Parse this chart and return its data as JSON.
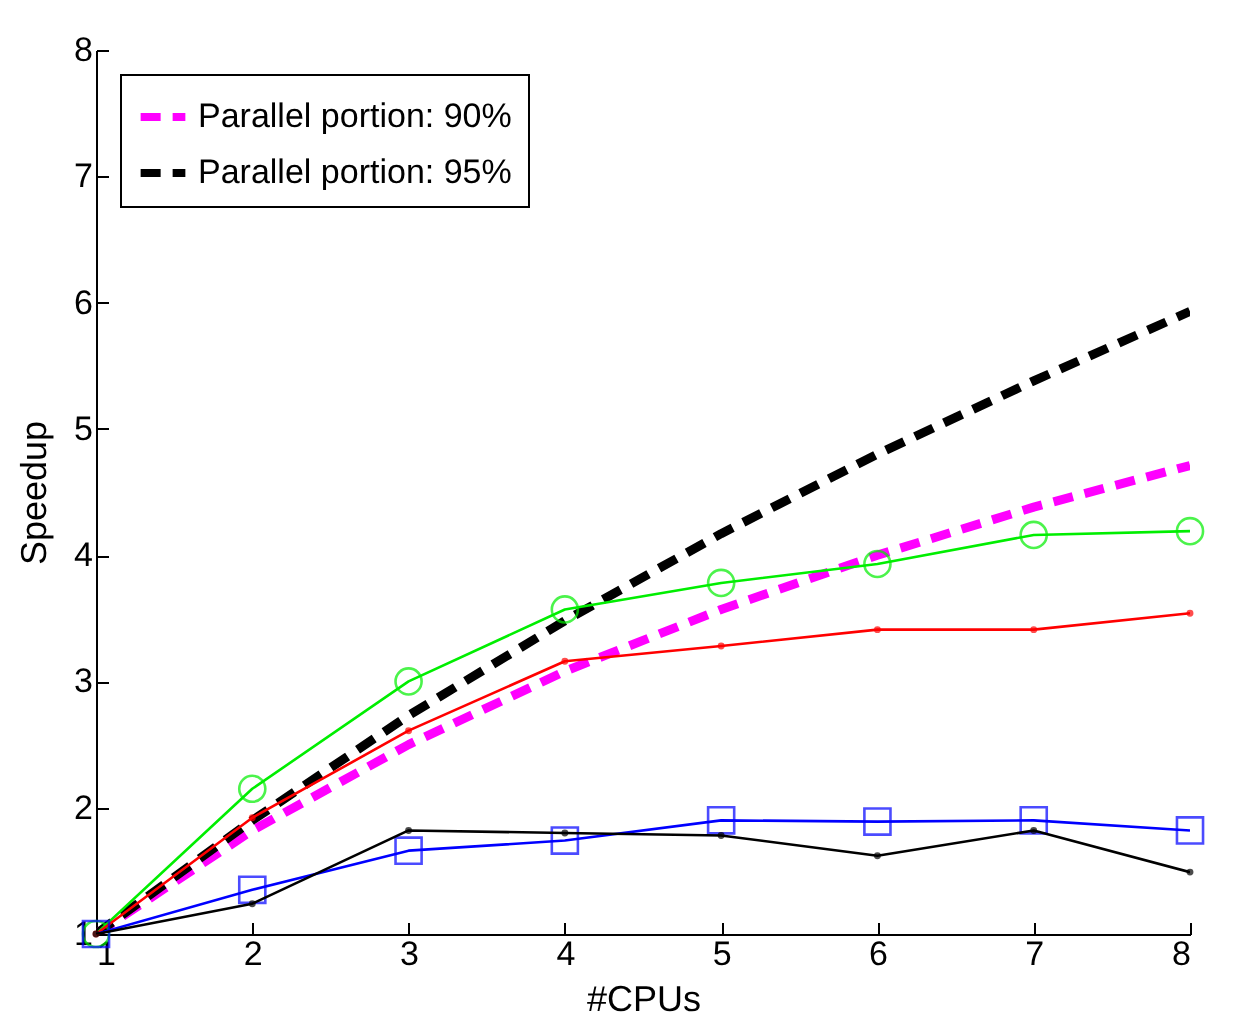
{
  "chart_data": {
    "type": "line",
    "xlabel": "#CPUs",
    "ylabel": "Speedup",
    "x": [
      1,
      2,
      3,
      4,
      5,
      6,
      7,
      8
    ],
    "xlim": [
      1,
      8
    ],
    "ylim": [
      1,
      8
    ],
    "xticks": [
      1,
      2,
      3,
      4,
      5,
      6,
      7,
      8
    ],
    "yticks": [
      1,
      2,
      3,
      4,
      5,
      6,
      7,
      8
    ],
    "grid": false,
    "legend": "top left",
    "series": [
      {
        "name": "Parallel portion: 90%",
        "color": "#ff00ff",
        "line_style": "dashed",
        "marker": "none",
        "values": [
          1,
          1.82,
          2.5,
          3.08,
          3.57,
          4,
          4.38,
          4.71
        ]
      },
      {
        "name": "Parallel portion: 95%",
        "color": "#000000",
        "line_style": "dashed",
        "marker": "none",
        "values": [
          1,
          1.9,
          2.73,
          3.48,
          4.17,
          4.8,
          5.38,
          5.93
        ]
      },
      {
        "color": "#00ee00",
        "line_style": "solid",
        "marker": "circle",
        "values": [
          1,
          2.15,
          3,
          3.57,
          3.78,
          3.93,
          4.16,
          4.19
        ]
      },
      {
        "color": "#ff0000",
        "line_style": "solid",
        "marker": "circle",
        "values": [
          1,
          1.92,
          2.61,
          3.16,
          3.28,
          3.41,
          3.41,
          3.54
        ]
      },
      {
        "color": "#0000ff",
        "line_style": "solid",
        "marker": "square",
        "values": [
          1,
          1.35,
          1.66,
          1.74,
          1.9,
          1.89,
          1.9,
          1.82
        ]
      },
      {
        "color": "#000000",
        "line_style": "solid",
        "marker": "circle",
        "values": [
          1,
          1.24,
          1.82,
          1.8,
          1.78,
          1.62,
          1.82,
          1.49
        ]
      }
    ]
  }
}
